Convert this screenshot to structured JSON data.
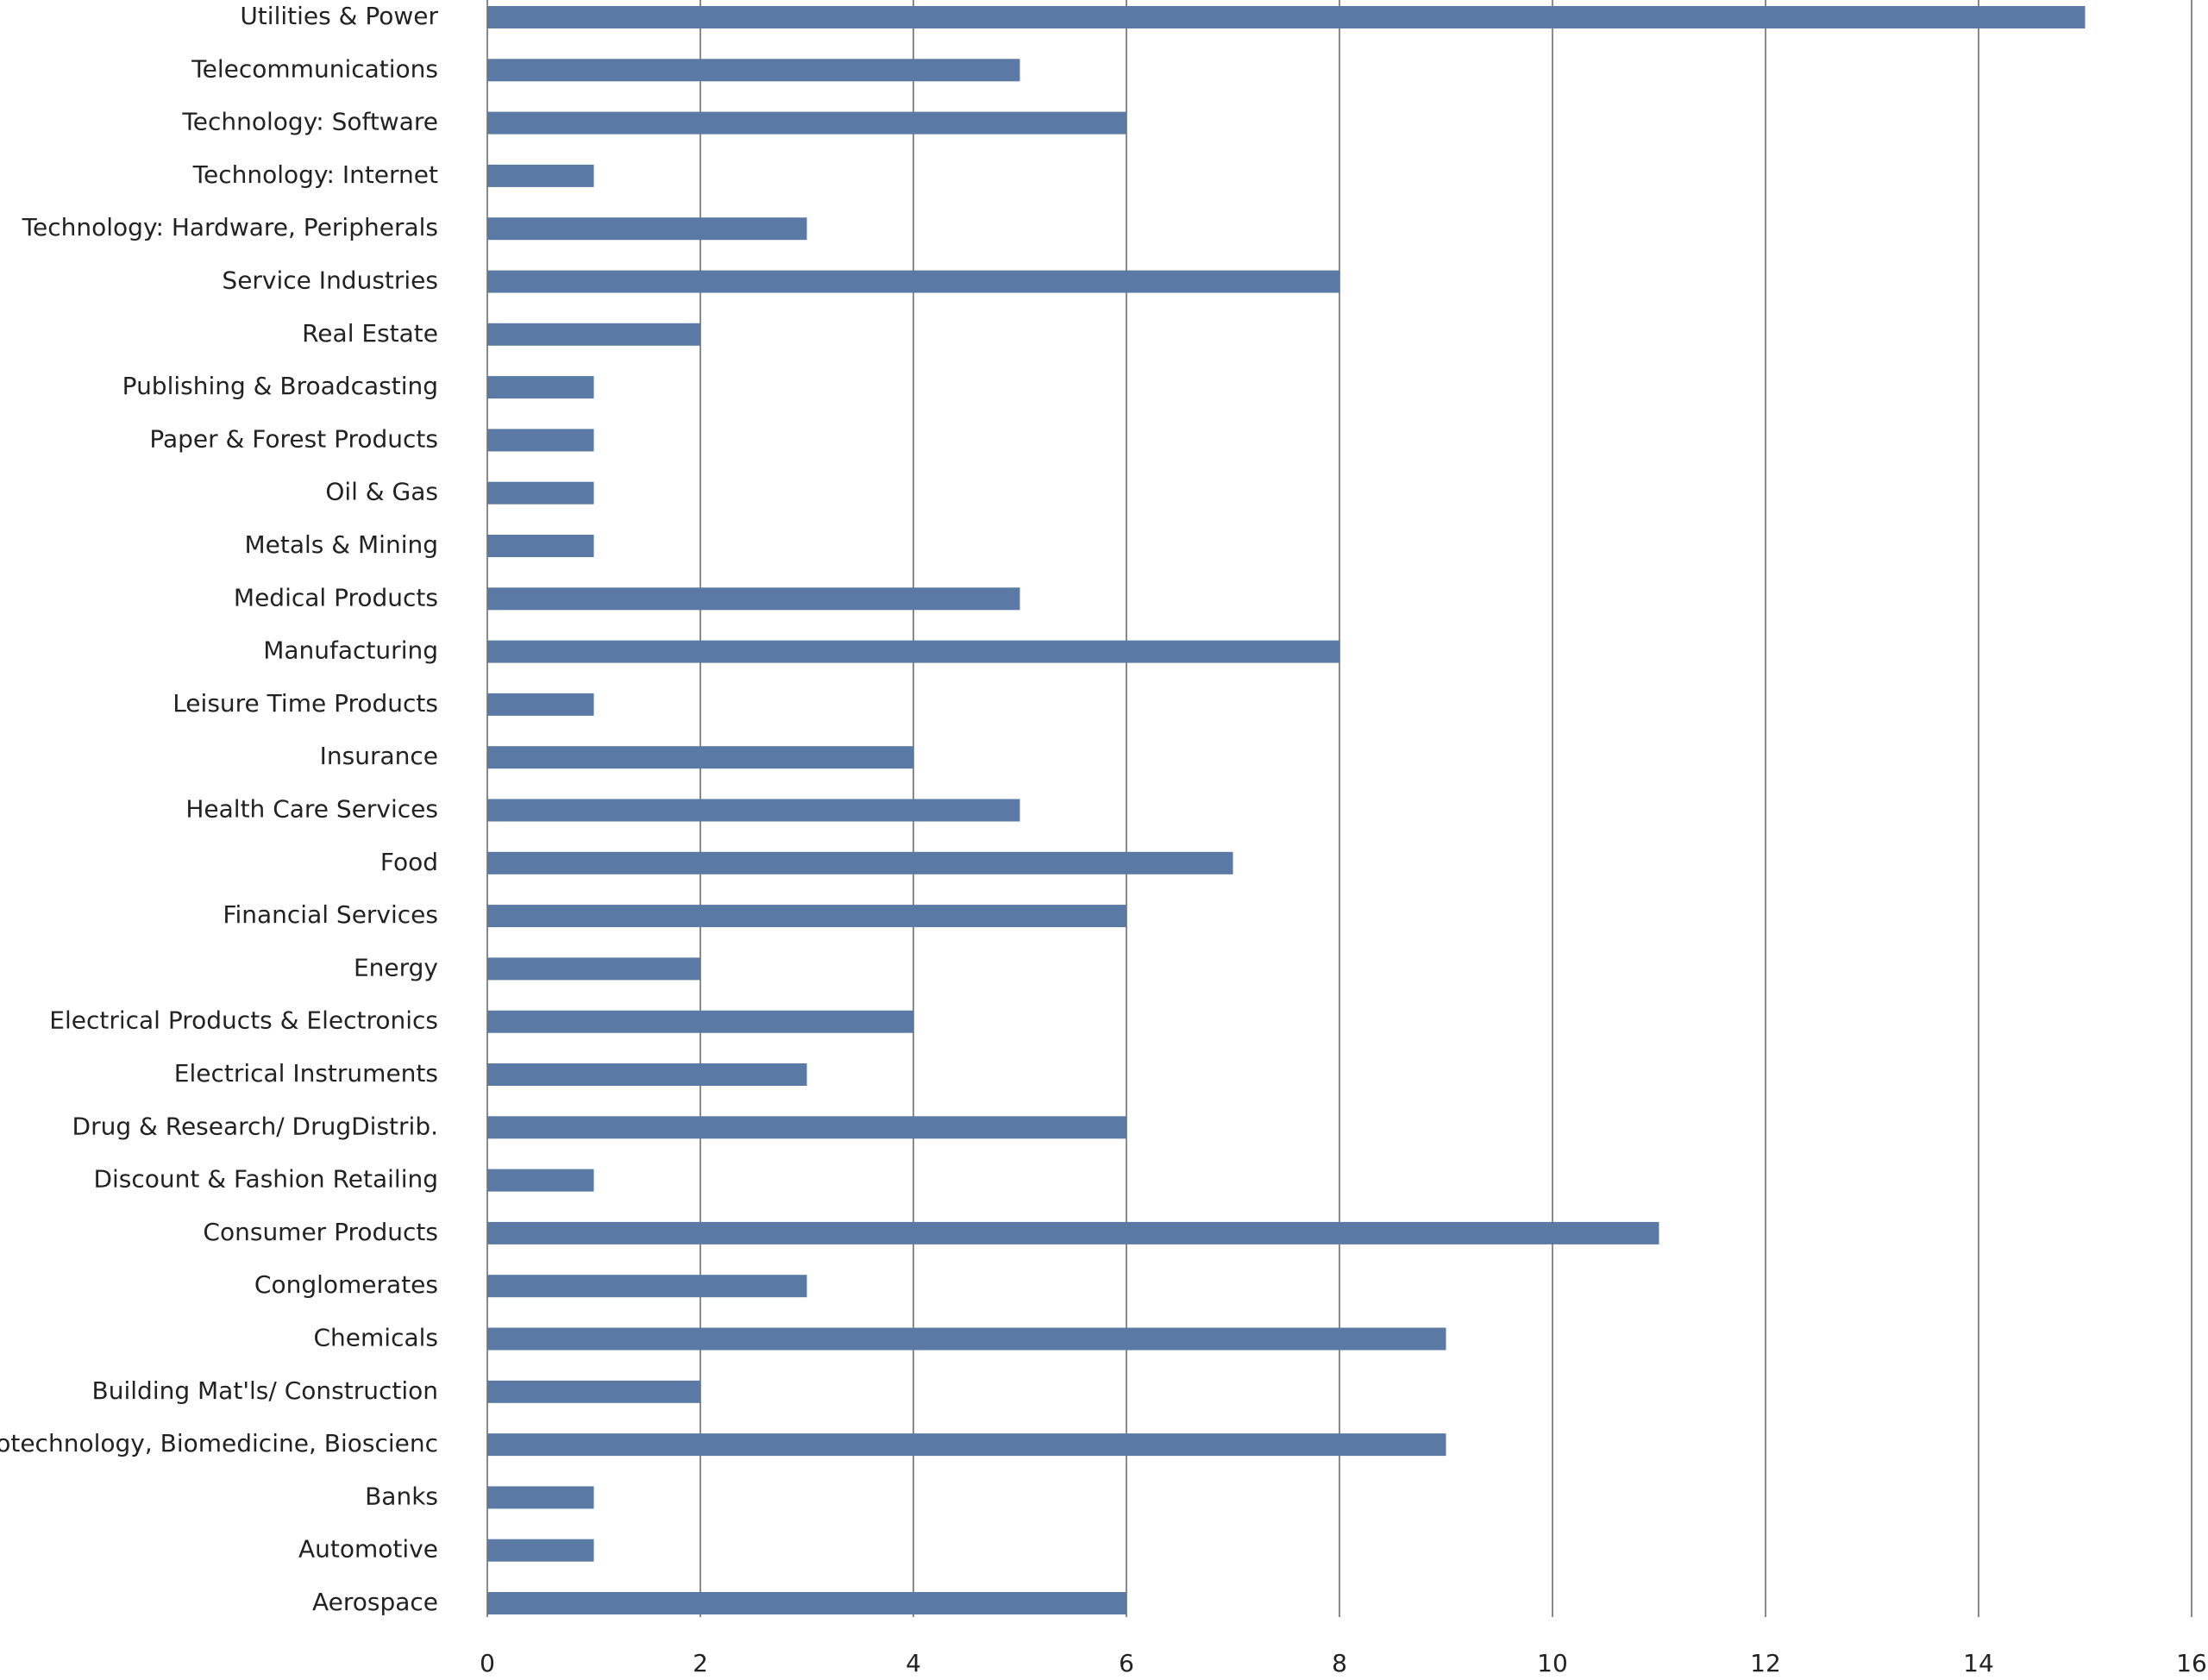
{
  "chart_data": {
    "type": "bar",
    "orientation": "horizontal",
    "categories": [
      "Utilities & Power",
      "Telecommunications",
      "Technology: Software",
      "Technology: Internet",
      "Technology: Hardware, Peripherals",
      "Service Industries",
      "Real Estate",
      "Publishing & Broadcasting",
      "Paper & Forest Products",
      "Oil & Gas",
      "Metals & Mining",
      "Medical Products",
      "Manufacturing",
      "Leisure Time Products",
      "Insurance",
      "Health Care Services",
      "Food",
      "Financial Services",
      "Energy",
      "Electrical Products & Electronics",
      "Electrical Instruments",
      "Drug & Research/ DrugDistrib.",
      "Discount & Fashion Retailing",
      "Consumer Products",
      "Conglomerates",
      "Chemicals",
      "Building Mat'ls/ Construction",
      "Biotechnology, Biomedicine, Bioscienc",
      "Banks",
      "Automotive",
      "Aerospace"
    ],
    "values": [
      15,
      5,
      6,
      1,
      3,
      8,
      2,
      1,
      1,
      1,
      1,
      5,
      8,
      1,
      4,
      5,
      7,
      6,
      2,
      4,
      3,
      6,
      1,
      11,
      3,
      9,
      2,
      9,
      1,
      1,
      6
    ],
    "color": "#5a79a5",
    "xlim": [
      0,
      16
    ],
    "xticks": [
      0,
      2,
      4,
      6,
      8,
      10,
      12,
      14,
      16
    ],
    "grid": true
  }
}
